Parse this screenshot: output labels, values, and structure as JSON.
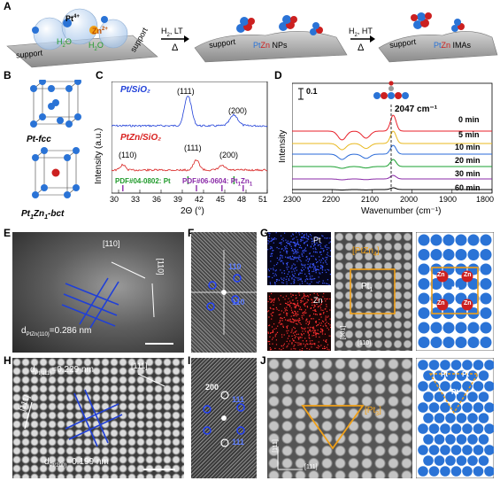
{
  "panel_letters": [
    "A",
    "B",
    "C",
    "D",
    "E",
    "F",
    "G",
    "H",
    "I",
    "J"
  ],
  "panelA": {
    "surf1": {
      "left": "support",
      "right": "support"
    },
    "ions": {
      "pt": "Pt",
      "pt_sup": "4+",
      "zn": "Zn",
      "zn_sup": "2+"
    },
    "water": [
      "H",
      "2",
      "O",
      "H",
      "2",
      "O"
    ],
    "arrow1": {
      "gas": "H",
      "gas_sub": "2",
      "cond": ", LT",
      "sym": "Δ"
    },
    "surf2": {
      "support": "support",
      "pt": "Pt",
      "zn": "Zn",
      "rest": " NPs"
    },
    "arrow2": {
      "gas": "H",
      "gas_sub": "2",
      "cond": ", HT",
      "sym": "Δ"
    },
    "surf3": {
      "support": "support",
      "pt": "Pt",
      "zn": "Zn",
      "rest": " IMAs"
    }
  },
  "panelB": {
    "fcc": {
      "base": "Pt",
      "rest": "-fcc"
    },
    "bct": {
      "el1": "Pt",
      "n1": "1",
      "el2": "Zn",
      "n2": "1",
      "rest": "-bct"
    }
  },
  "panelC": {
    "ylabel": "Intensity (a.u.)",
    "xlabel": "2Θ (°)",
    "xticks": [
      "30",
      "33",
      "36",
      "39",
      "42",
      "45",
      "48",
      "51"
    ],
    "xrange": [
      29,
      51
    ],
    "series": [
      {
        "name": "Pt/SiO₂",
        "color": "#1f3fd8",
        "peak_labels": [
          "(111)",
          "(200)"
        ]
      },
      {
        "name": "PtZn/SiO₂",
        "color": "#d8201f",
        "peak_labels": [
          "(110)",
          "(111)",
          "(200)"
        ]
      }
    ],
    "refs": [
      {
        "label": "PDF#04-0802: Pt",
        "color": "#1f9a2a"
      },
      {
        "label_parts": [
          "PDF#06-0604: Pt",
          "1",
          "Zn",
          "1"
        ],
        "color": "#8a2aa8"
      }
    ]
  },
  "panelD": {
    "ylabel": "Intensity",
    "xlabel": "Wavenumber (cm⁻¹)",
    "scale_bar": "0.1",
    "peak_label": "2047 cm⁻¹",
    "xticks": [
      "2300",
      "2200",
      "2100",
      "2000",
      "1900",
      "1800"
    ],
    "xrange": [
      2300,
      1800
    ],
    "series": [
      {
        "name": "0 min",
        "color": "#e8202a"
      },
      {
        "name": "5 min",
        "color": "#e8b81e"
      },
      {
        "name": "10 min",
        "color": "#2a6ad8"
      },
      {
        "name": "20 min",
        "color": "#1aa030"
      },
      {
        "name": "30 min",
        "color": "#8a2aa8"
      },
      {
        "name": "60 min",
        "color": "#000000"
      }
    ]
  },
  "panelE": {
    "dir1": "[110]",
    "dir2": "[110]",
    "d_label": {
      "base": "d",
      "sub": "PtZn(110)",
      "rest": "=0.286 nm"
    }
  },
  "panelF": {
    "labels": [
      "110",
      "110"
    ]
  },
  "panelG": {
    "map_pt": "Pt",
    "map_zn": "Zn",
    "box_label": {
      "open": "[PtZn",
      "sub": "4",
      "close": "]"
    },
    "center_label": {
      "base": "Pt",
      "sub": "1"
    },
    "dir1": "[001]",
    "dir2": "[110]",
    "model_center": "Pt",
    "model_zn": [
      "Zn",
      "Zn",
      "Zn",
      "Zn"
    ]
  },
  "panelH": {
    "d1": {
      "base": "d",
      "sub": "Pt(111)",
      "rest": "=0.229 nm"
    },
    "d2": {
      "base": "d",
      "sub": "Pt(200)",
      "rest": "=0.199 nm"
    },
    "dir1": "[111]",
    "dir2": "[111]"
  },
  "panelI": {
    "labels": [
      "200",
      "111",
      "111"
    ]
  },
  "panelJ": {
    "tri_label": {
      "open": "[Pt",
      "sub": "3",
      "close": "]"
    },
    "dir1": "[111]",
    "dir2": "[111]",
    "model_labels": [
      "Pt",
      "Pt",
      "Pt"
    ]
  },
  "colors": {
    "pt_atom": "#2a73d6",
    "zn_atom": "#cc2020",
    "frame": "#f0a018"
  }
}
